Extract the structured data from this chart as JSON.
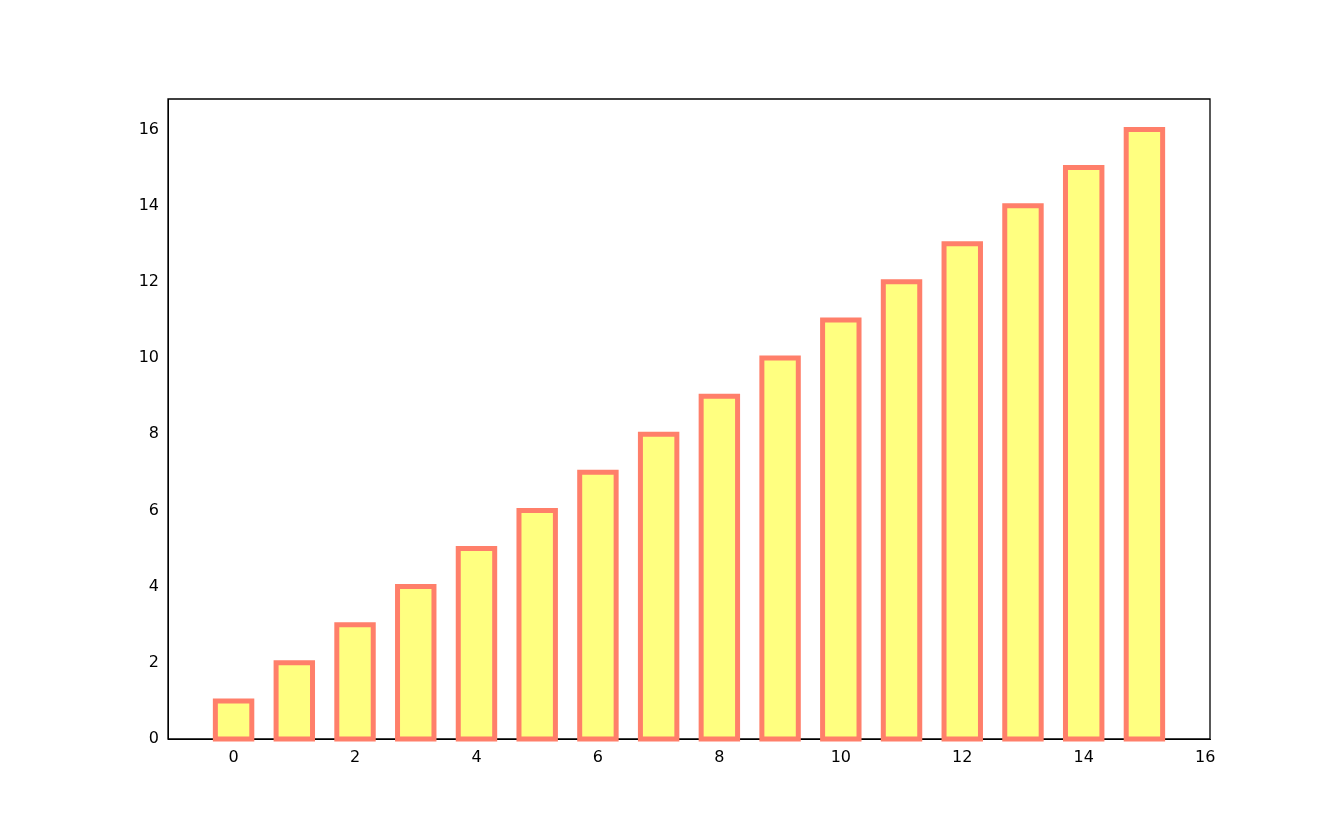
{
  "chart_data": {
    "type": "bar",
    "x": [
      0,
      1,
      2,
      3,
      4,
      5,
      6,
      7,
      8,
      9,
      10,
      11,
      12,
      13,
      14,
      15
    ],
    "values": [
      1,
      2,
      3,
      4,
      5,
      6,
      7,
      8,
      9,
      10,
      11,
      12,
      13,
      14,
      15,
      16
    ],
    "color": "#ffff80",
    "xlim": [
      -1.08,
      16.08
    ],
    "xticks": [
      0,
      2,
      4,
      6,
      8,
      10,
      12,
      14,
      16
    ],
    "ylim": [
      0,
      16.8
    ],
    "yticks": [
      0,
      2,
      4,
      6,
      8,
      10,
      12,
      14,
      16
    ],
    "grid": false,
    "legend": false
  }
}
